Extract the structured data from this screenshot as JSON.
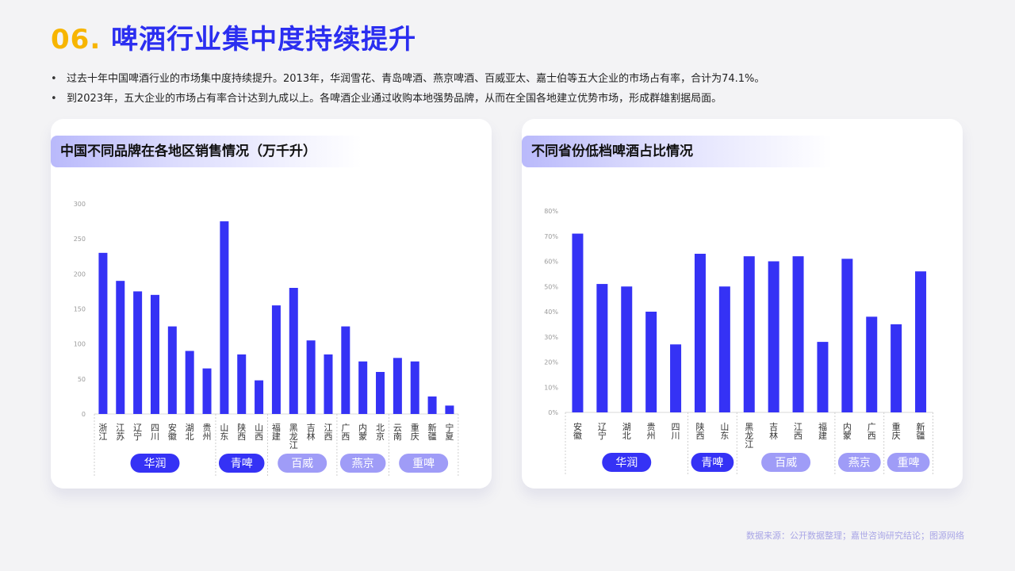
{
  "header": {
    "num": "06.",
    "title": "啤酒行业集中度持续提升"
  },
  "bullets": [
    "过去十年中国啤酒行业的市场集中度持续提升。2013年，华润雪花、青岛啤酒、燕京啤酒、百威亚太、嘉士伯等五大企业的市场占有率，合计为74.1%。",
    "到2023年，五大企业的市场占有率合计达到九成以上。各啤酒企业通过收购本地强势品牌，从而在全国各地建立优势市场，形成群雄割据局面。"
  ],
  "colors": {
    "bar": "#3532f5",
    "accent": "#2b2ef0",
    "tag_dark": "#3532f5",
    "tag_light": "#9f9cf7"
  },
  "chart_data": [
    {
      "type": "bar",
      "title": "中国不同品牌在各地区销售情况（万千升）",
      "ylim": [
        0,
        300
      ],
      "yticks": [
        "0",
        "50",
        "100",
        "150",
        "200",
        "250",
        "300"
      ],
      "categories": [
        "浙江",
        "江苏",
        "辽宁",
        "四川",
        "安徽",
        "湖北",
        "贵州",
        "山东",
        "陕西",
        "山西",
        "福建",
        "黑龙江",
        "吉林",
        "江西",
        "广西",
        "内蒙",
        "北京",
        "云南",
        "重庆",
        "新疆",
        "宁夏"
      ],
      "values": [
        230,
        190,
        175,
        170,
        125,
        90,
        65,
        275,
        85,
        48,
        155,
        180,
        105,
        85,
        125,
        75,
        60,
        80,
        75,
        25,
        12
      ],
      "groups": [
        {
          "label": "华润",
          "count": 7,
          "style": "dark"
        },
        {
          "label": "青啤",
          "count": 3,
          "style": "dark"
        },
        {
          "label": "百威",
          "count": 4,
          "style": "light"
        },
        {
          "label": "燕京",
          "count": 3,
          "style": "light"
        },
        {
          "label": "重啤",
          "count": 4,
          "style": "light"
        }
      ]
    },
    {
      "type": "bar",
      "title": "不同省份低档啤酒占比情况",
      "ylim": [
        0,
        80
      ],
      "yticks": [
        "0%",
        "10%",
        "20%",
        "30%",
        "40%",
        "50%",
        "60%",
        "70%",
        "80%"
      ],
      "categories": [
        "安徽",
        "辽宁",
        "湖北",
        "贵州",
        "四川",
        "陕西",
        "山东",
        "黑龙江",
        "吉林",
        "江西",
        "福建",
        "内蒙",
        "广西",
        "重庆",
        "新疆"
      ],
      "values": [
        71,
        51,
        50,
        40,
        27,
        63,
        50,
        62,
        60,
        62,
        28,
        61,
        38,
        35,
        56
      ],
      "groups": [
        {
          "label": "华润",
          "count": 5,
          "style": "dark"
        },
        {
          "label": "青啤",
          "count": 2,
          "style": "dark"
        },
        {
          "label": "百威",
          "count": 4,
          "style": "light"
        },
        {
          "label": "燕京",
          "count": 2,
          "style": "light"
        },
        {
          "label": "重啤",
          "count": 2,
          "style": "light"
        }
      ]
    }
  ],
  "source": "数据来源：公开数据整理；嘉世咨询研究结论；图源网络"
}
